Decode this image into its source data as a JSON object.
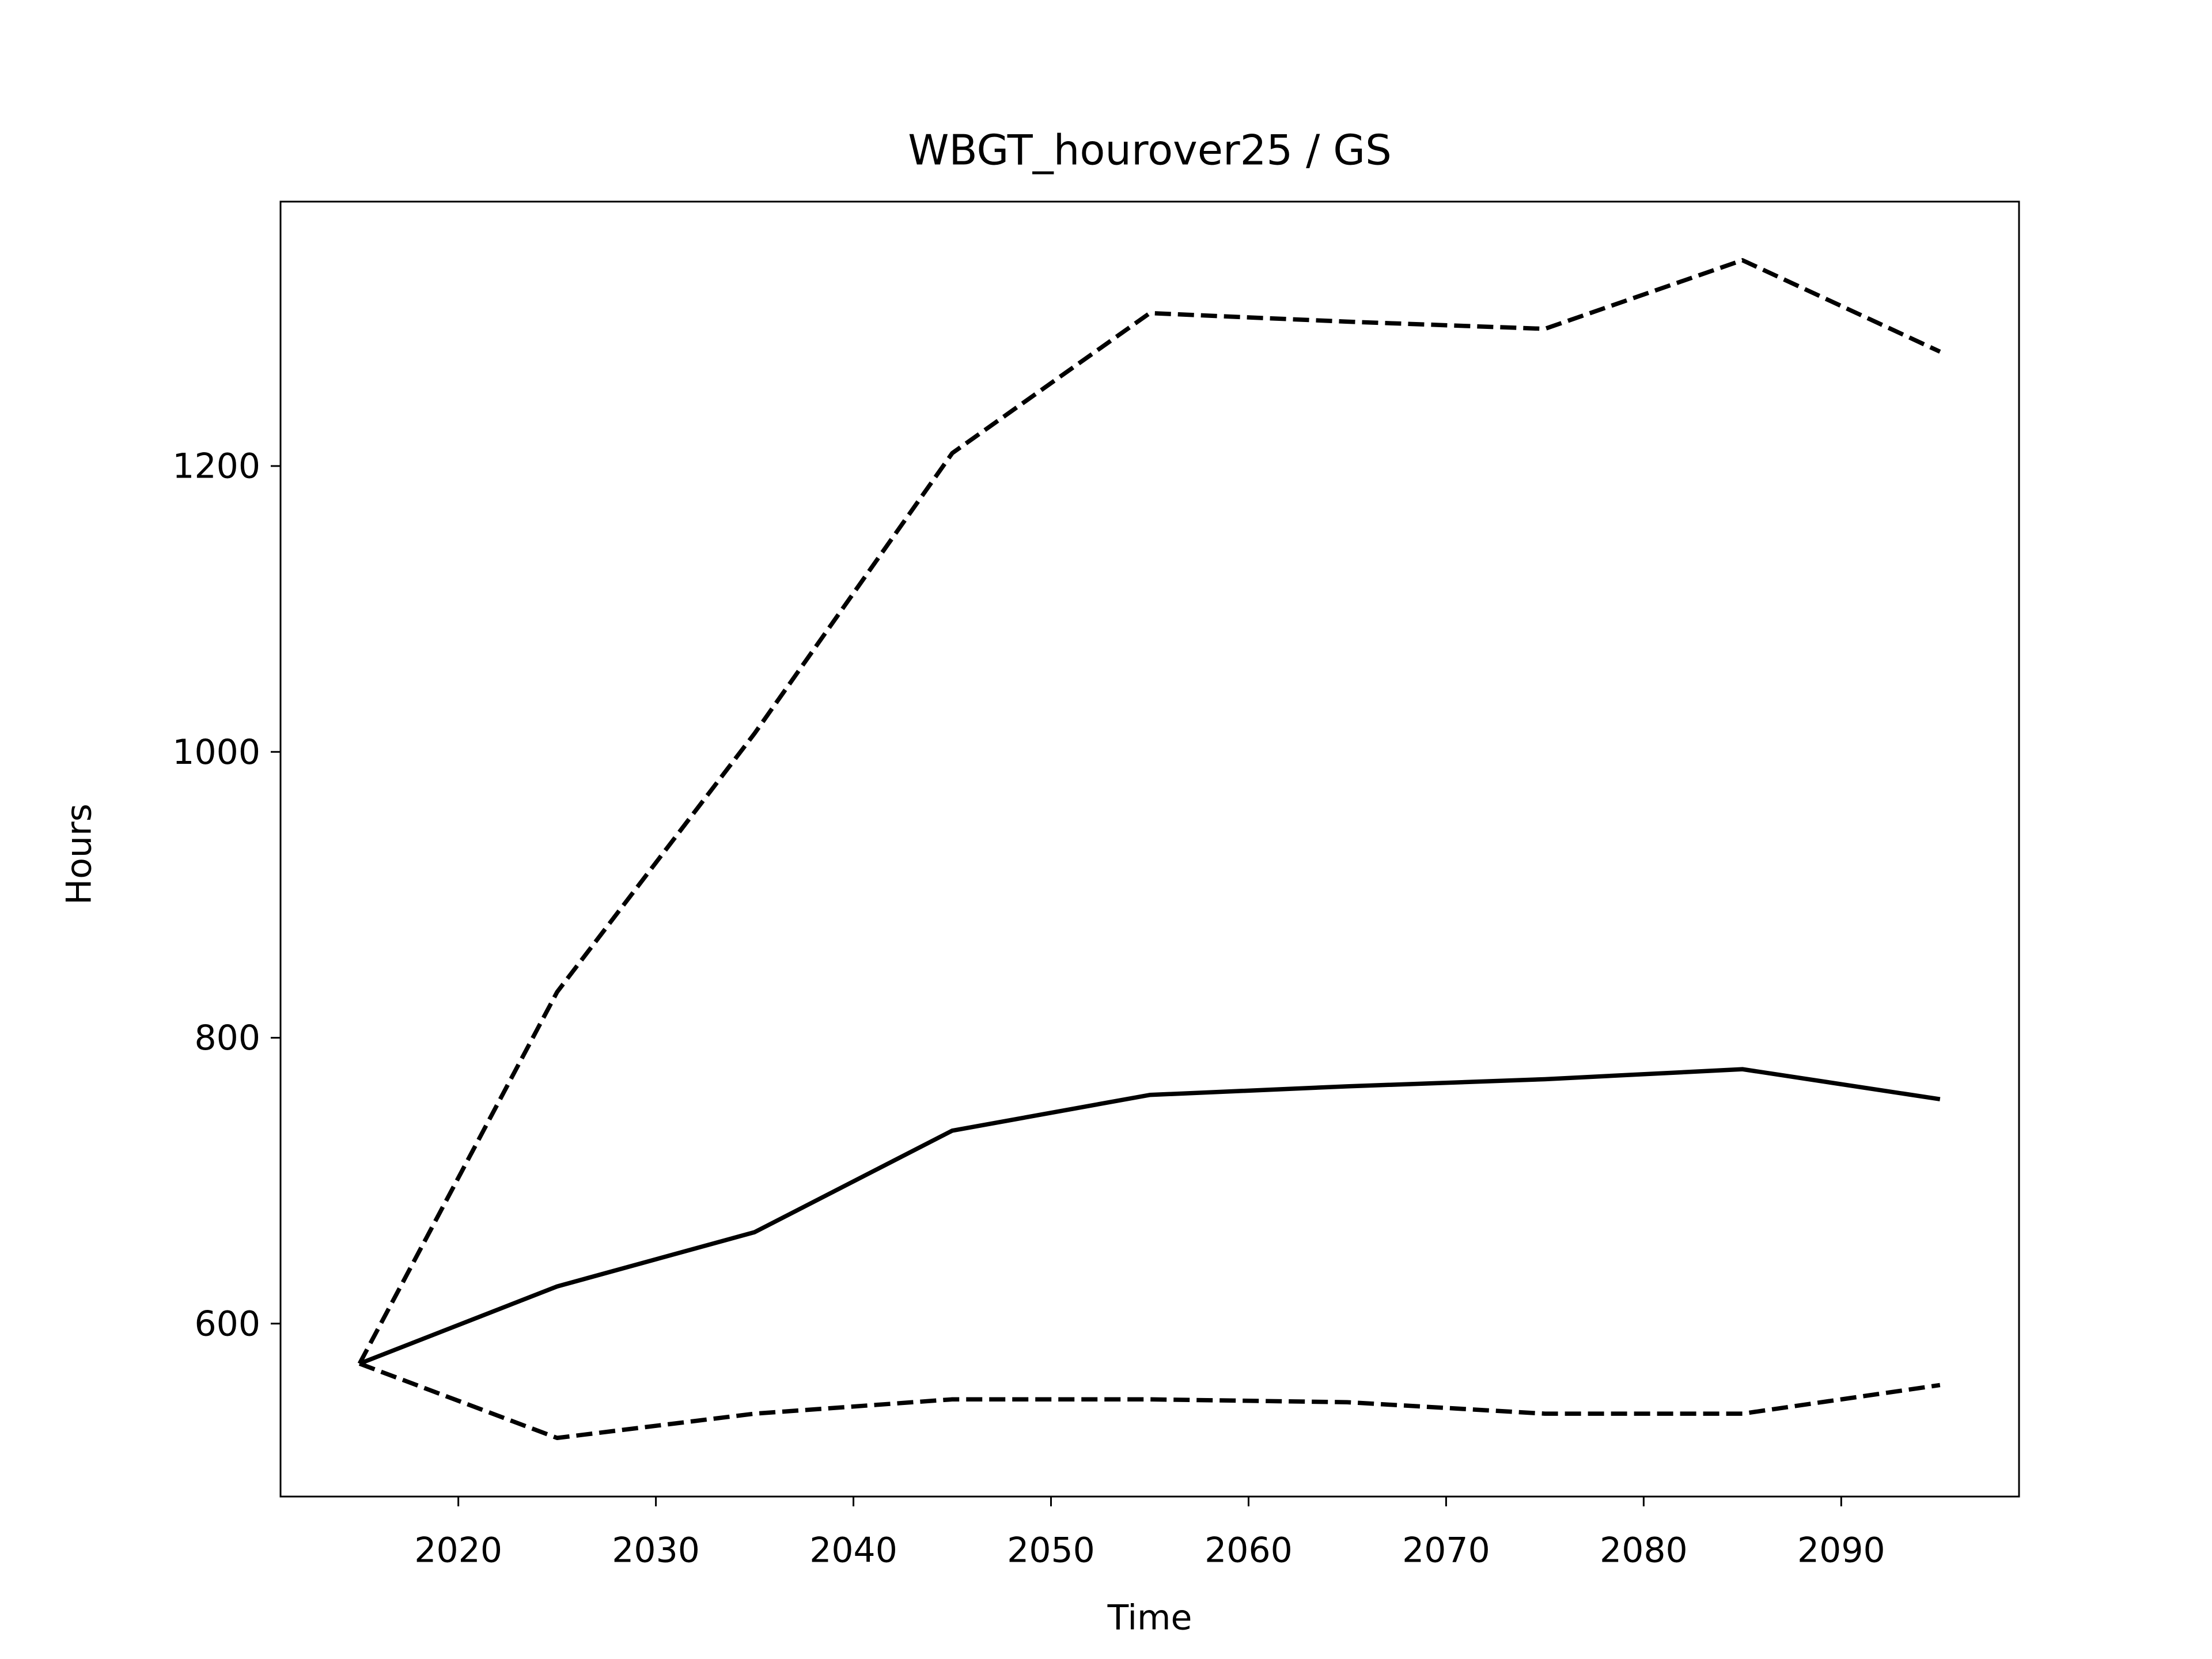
{
  "chart_data": {
    "type": "line",
    "title": "WBGT_hourover25 / GS",
    "x_label": "Time",
    "y_label": "Hours",
    "x": [
      2015,
      2025,
      2035,
      2045,
      2055,
      2065,
      2075,
      2085,
      2095
    ],
    "series": [
      {
        "color": "#000000",
        "linestyle": "solid",
        "values": [
          572,
          626,
          664,
          735,
          760,
          766,
          771,
          778,
          757
        ]
      },
      {
        "color": "#000000",
        "linestyle": "dashed",
        "values": [
          572,
          832,
          1013,
          1209,
          1307,
          1301,
          1296,
          1344,
          1280
        ]
      },
      {
        "color": "#000000",
        "linestyle": "dashed",
        "values": [
          572,
          520,
          537,
          547,
          547,
          545,
          537,
          537,
          557
        ]
      }
    ],
    "xlim": [
      2011,
      2099
    ],
    "ylim": [
      479,
      1385
    ],
    "xticks": [
      2020,
      2030,
      2040,
      2050,
      2060,
      2070,
      2080,
      2090
    ],
    "yticks": [
      600,
      800,
      1000,
      1200
    ],
    "grid": false
  }
}
